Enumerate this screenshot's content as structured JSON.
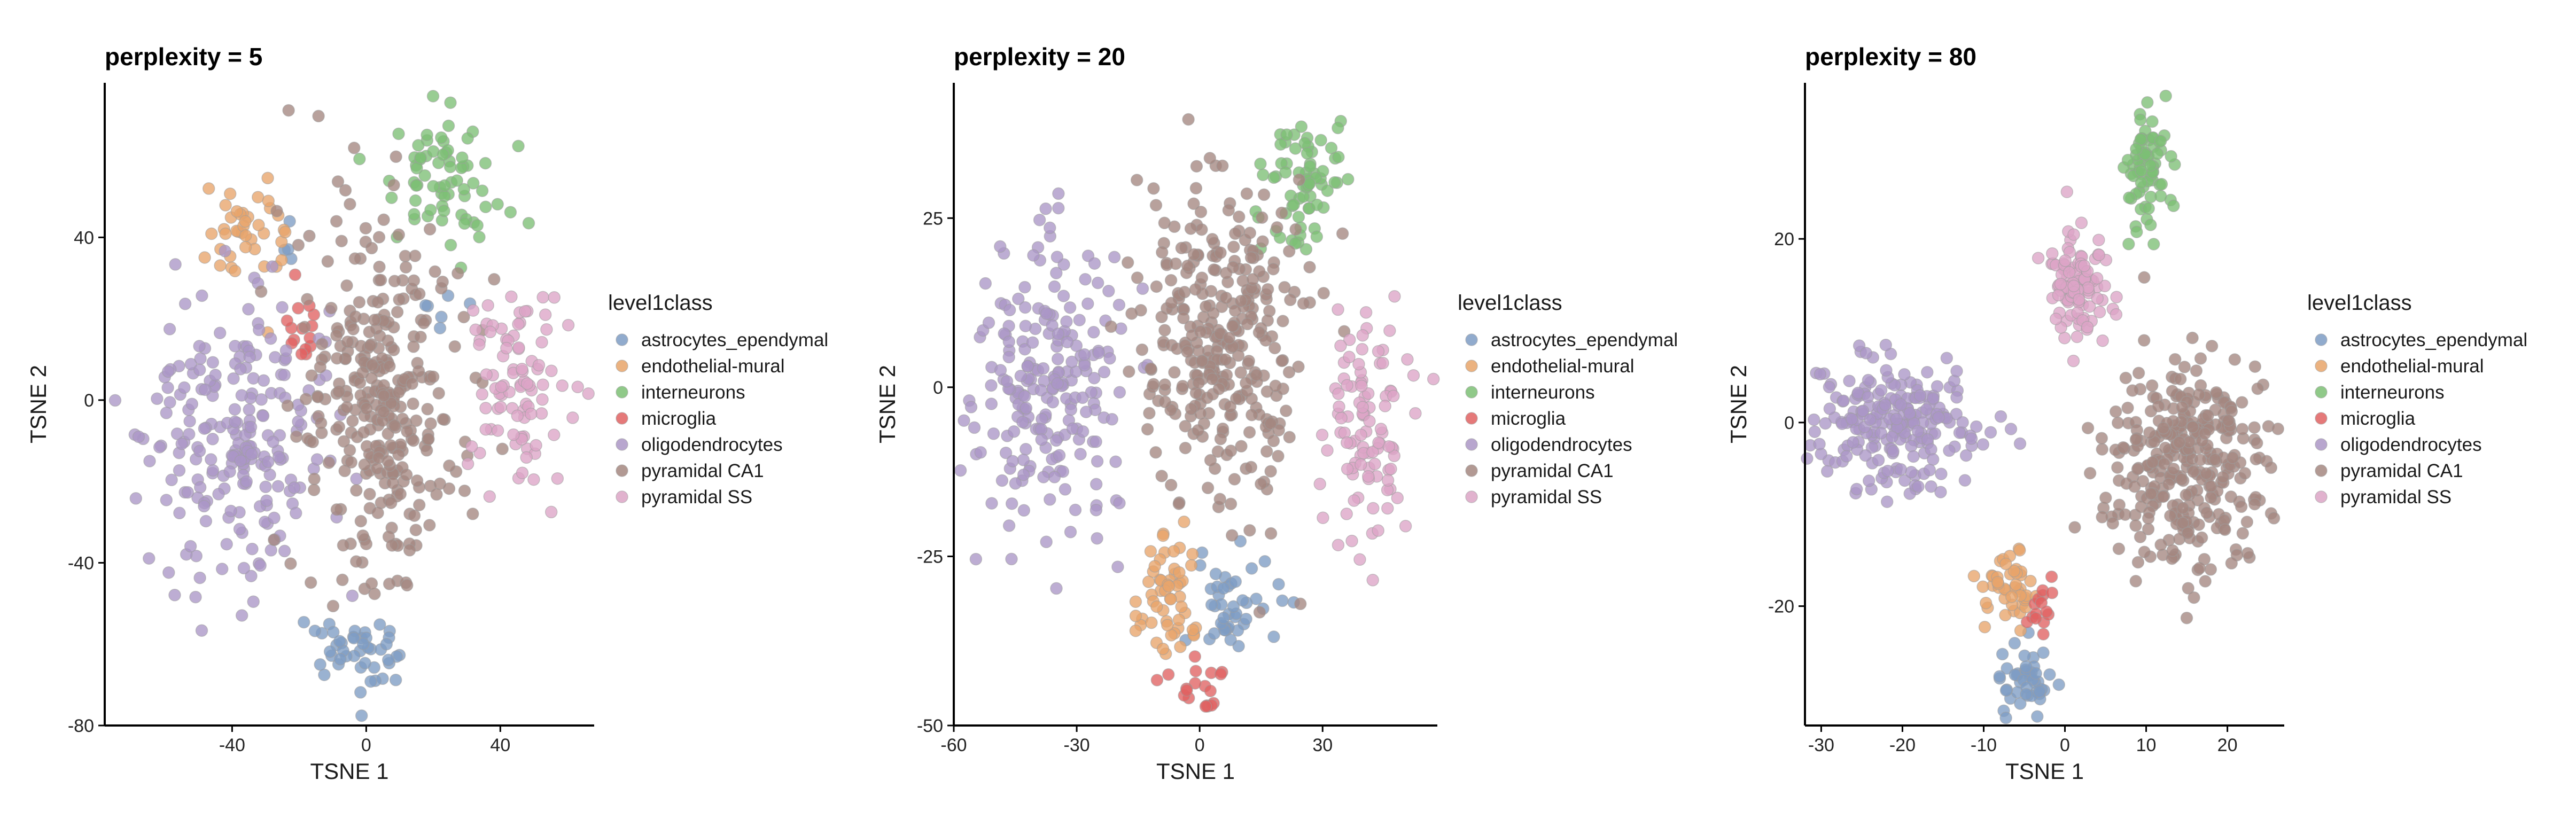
{
  "chart_data": [
    {
      "type": "scatter",
      "title": "perplexity = 5",
      "xlabel": "TSNE 1",
      "ylabel": "TSNE 2",
      "xlim": [
        -78,
        68
      ],
      "ylim": [
        -80,
        78
      ],
      "xticks": [
        -40,
        0,
        40
      ],
      "yticks": [
        -80,
        -40,
        0,
        40
      ],
      "legend_title": "level1class",
      "legend_position": "right",
      "grid": false,
      "series": [
        {
          "name": "astrocytes_ependymal",
          "clusters": [
            {
              "cx": -5,
              "cy": -63,
              "sx": 7,
              "sy": 5,
              "n": 45
            },
            {
              "cx": 22,
              "cy": 22,
              "sx": 4,
              "sy": 4,
              "n": 6
            },
            {
              "cx": -25,
              "cy": 40,
              "sx": 3,
              "sy": 3,
              "n": 4
            }
          ]
        },
        {
          "name": "endothelial-mural",
          "clusters": [
            {
              "cx": -35,
              "cy": 42,
              "sx": 6,
              "sy": 7,
              "n": 40
            }
          ]
        },
        {
          "name": "interneurons",
          "clusters": [
            {
              "cx": 22,
              "cy": 53,
              "sx": 9,
              "sy": 7,
              "n": 70
            }
          ]
        },
        {
          "name": "microglia",
          "clusters": [
            {
              "cx": -18,
              "cy": 18,
              "sx": 3,
              "sy": 5,
              "n": 15
            }
          ]
        },
        {
          "name": "oligodendrocytes",
          "clusters": [
            {
              "cx": -38,
              "cy": -10,
              "sx": 14,
              "sy": 17,
              "n": 220
            }
          ]
        },
        {
          "name": "pyramidal CA1",
          "clusters": [
            {
              "cx": 5,
              "cy": 0,
              "sx": 12,
              "sy": 22,
              "n": 320
            }
          ]
        },
        {
          "name": "pyramidal SS",
          "clusters": [
            {
              "cx": 46,
              "cy": 5,
              "sx": 8,
              "sy": 13,
              "n": 90
            }
          ]
        }
      ]
    },
    {
      "type": "scatter",
      "title": "perplexity = 20",
      "xlabel": "TSNE 1",
      "ylabel": "TSNE 2",
      "xlim": [
        -60,
        58
      ],
      "ylim": [
        -50,
        45
      ],
      "xticks": [
        -60,
        -30,
        0,
        30
      ],
      "yticks": [
        -50,
        -25,
        0,
        25
      ],
      "legend_title": "level1class",
      "legend_position": "right",
      "grid": false,
      "series": [
        {
          "name": "astrocytes_ependymal",
          "clusters": [
            {
              "cx": 8,
              "cy": -33,
              "sx": 5,
              "sy": 4,
              "n": 45
            }
          ]
        },
        {
          "name": "endothelial-mural",
          "clusters": [
            {
              "cx": -8,
              "cy": -30,
              "sx": 4,
              "sy": 5,
              "n": 55
            }
          ]
        },
        {
          "name": "interneurons",
          "clusters": [
            {
              "cx": 25,
              "cy": 30,
              "sx": 5,
              "sy": 5,
              "n": 70
            }
          ]
        },
        {
          "name": "microglia",
          "clusters": [
            {
              "cx": 0,
              "cy": -45,
              "sx": 3,
              "sy": 2,
              "n": 20
            }
          ]
        },
        {
          "name": "oligodendrocytes",
          "clusters": [
            {
              "cx": -37,
              "cy": 0,
              "sx": 9,
              "sy": 11,
              "n": 220
            }
          ]
        },
        {
          "name": "pyramidal CA1",
          "clusters": [
            {
              "cx": 5,
              "cy": 8,
              "sx": 10,
              "sy": 12,
              "n": 320
            }
          ]
        },
        {
          "name": "pyramidal SS",
          "clusters": [
            {
              "cx": 40,
              "cy": -5,
              "sx": 5,
              "sy": 9,
              "n": 100
            }
          ]
        }
      ]
    },
    {
      "type": "scatter",
      "title": "perplexity = 80",
      "xlabel": "TSNE 1",
      "ylabel": "TSNE 2",
      "xlim": [
        -32,
        27
      ],
      "ylim": [
        -33,
        37
      ],
      "xticks": [
        -30,
        -20,
        -10,
        0,
        10,
        20
      ],
      "yticks": [
        -20,
        0,
        20
      ],
      "legend_title": "level1class",
      "legend_position": "right",
      "grid": false,
      "series": [
        {
          "name": "astrocytes_ependymal",
          "clusters": [
            {
              "cx": -5,
              "cy": -28,
              "sx": 2,
              "sy": 2,
              "n": 45
            }
          ]
        },
        {
          "name": "endothelial-mural",
          "clusters": [
            {
              "cx": -7,
              "cy": -18,
              "sx": 1.5,
              "sy": 2.5,
              "n": 45
            }
          ]
        },
        {
          "name": "interneurons",
          "clusters": [
            {
              "cx": 10,
              "cy": 28,
              "sx": 1.5,
              "sy": 3.5,
              "n": 70
            }
          ]
        },
        {
          "name": "microglia",
          "clusters": [
            {
              "cx": -2.5,
              "cy": -20,
              "sx": 1,
              "sy": 1.5,
              "n": 15
            }
          ]
        },
        {
          "name": "oligodendrocytes",
          "clusters": [
            {
              "cx": -21,
              "cy": 0,
              "sx": 5,
              "sy": 3.5,
              "n": 220
            }
          ]
        },
        {
          "name": "pyramidal CA1",
          "clusters": [
            {
              "cx": 15,
              "cy": -4,
              "sx": 5,
              "sy": 6,
              "n": 330
            }
          ]
        },
        {
          "name": "pyramidal SS",
          "clusters": [
            {
              "cx": 1.5,
              "cy": 15,
              "sx": 2,
              "sy": 3,
              "n": 100
            }
          ]
        }
      ]
    }
  ],
  "colors": {
    "astrocytes_ependymal": "#7e9cc4",
    "endothelial-mural": "#e8a46a",
    "interneurons": "#7cbf74",
    "microglia": "#e06262",
    "oligodendrocytes": "#ab96c6",
    "pyramidal CA1": "#a48780",
    "pyramidal SS": "#dca4c6",
    "point_stroke": "#9e9e9e"
  }
}
